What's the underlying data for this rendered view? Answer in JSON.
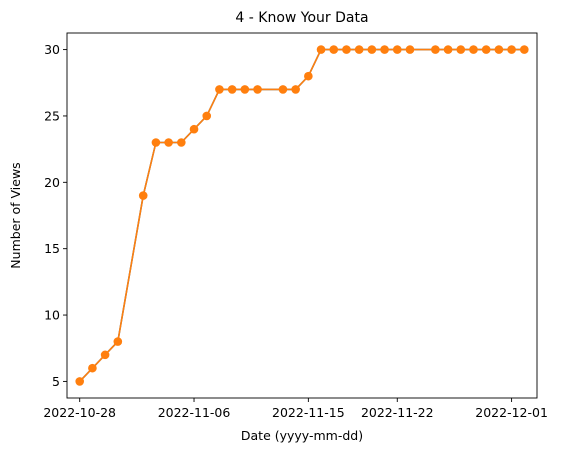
{
  "chart_data": {
    "type": "line",
    "title": "4 - Know Your Data",
    "xlabel": "Date (yyyy-mm-dd)",
    "ylabel": "Number of Views",
    "xlim": [
      "2022-10-27",
      "2022-12-03"
    ],
    "ylim": [
      3.75,
      31.25
    ],
    "x_ticks": [
      "2022-10-28",
      "2022-11-06",
      "2022-11-15",
      "2022-11-22",
      "2022-12-01"
    ],
    "y_ticks": [
      5,
      10,
      15,
      20,
      25,
      30
    ],
    "grid": false,
    "legend": "none",
    "series": [
      {
        "color": "#ff7f0e",
        "underlay_color": "#1f77b4",
        "marker": "circle",
        "x": [
          "2022-10-28",
          "2022-10-29",
          "2022-10-30",
          "2022-10-31",
          "2022-11-02",
          "2022-11-03",
          "2022-11-04",
          "2022-11-05",
          "2022-11-06",
          "2022-11-07",
          "2022-11-08",
          "2022-11-09",
          "2022-11-10",
          "2022-11-11",
          "2022-11-13",
          "2022-11-14",
          "2022-11-15",
          "2022-11-16",
          "2022-11-17",
          "2022-11-18",
          "2022-11-19",
          "2022-11-20",
          "2022-11-21",
          "2022-11-22",
          "2022-11-23",
          "2022-11-25",
          "2022-11-26",
          "2022-11-27",
          "2022-11-28",
          "2022-11-29",
          "2022-11-30",
          "2022-12-01",
          "2022-12-02"
        ],
        "y": [
          5,
          6,
          7,
          8,
          19,
          23,
          23,
          23,
          24,
          25,
          27,
          27,
          27,
          27,
          27,
          27,
          28,
          30,
          30,
          30,
          30,
          30,
          30,
          30,
          30,
          30,
          30,
          30,
          30,
          30,
          30,
          30,
          30
        ]
      }
    ]
  }
}
